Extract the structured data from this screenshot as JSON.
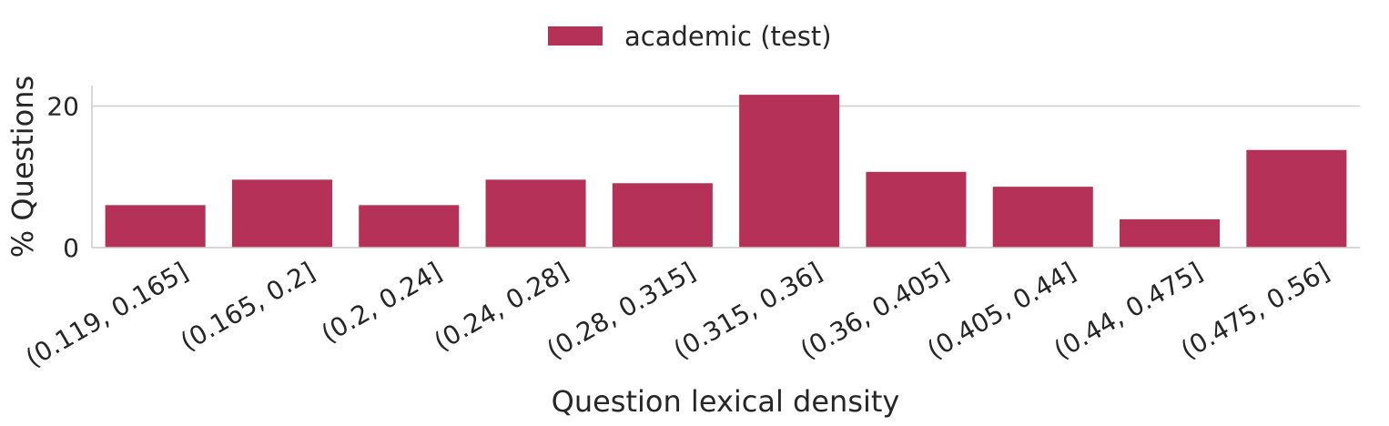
{
  "chart_data": {
    "type": "bar",
    "categories": [
      "(0.119, 0.165]",
      "(0.165, 0.2]",
      "(0.2, 0.24]",
      "(0.24, 0.28]",
      "(0.28, 0.315]",
      "(0.315, 0.36]",
      "(0.36, 0.405]",
      "(0.405, 0.44]",
      "(0.44, 0.475]",
      "(0.475, 0.56]"
    ],
    "series": [
      {
        "name": "academic (test)",
        "values": [
          6.0,
          9.6,
          6.0,
          9.6,
          9.1,
          21.6,
          10.7,
          8.6,
          4.0,
          13.8
        ],
        "color": "#b53157"
      }
    ],
    "xlabel": "Question lexical density",
    "ylabel": "% Questions",
    "ylim": [
      0,
      22.9
    ],
    "yticks": [
      0,
      20
    ],
    "grid": "horizontal",
    "legend_position": "top-center"
  }
}
